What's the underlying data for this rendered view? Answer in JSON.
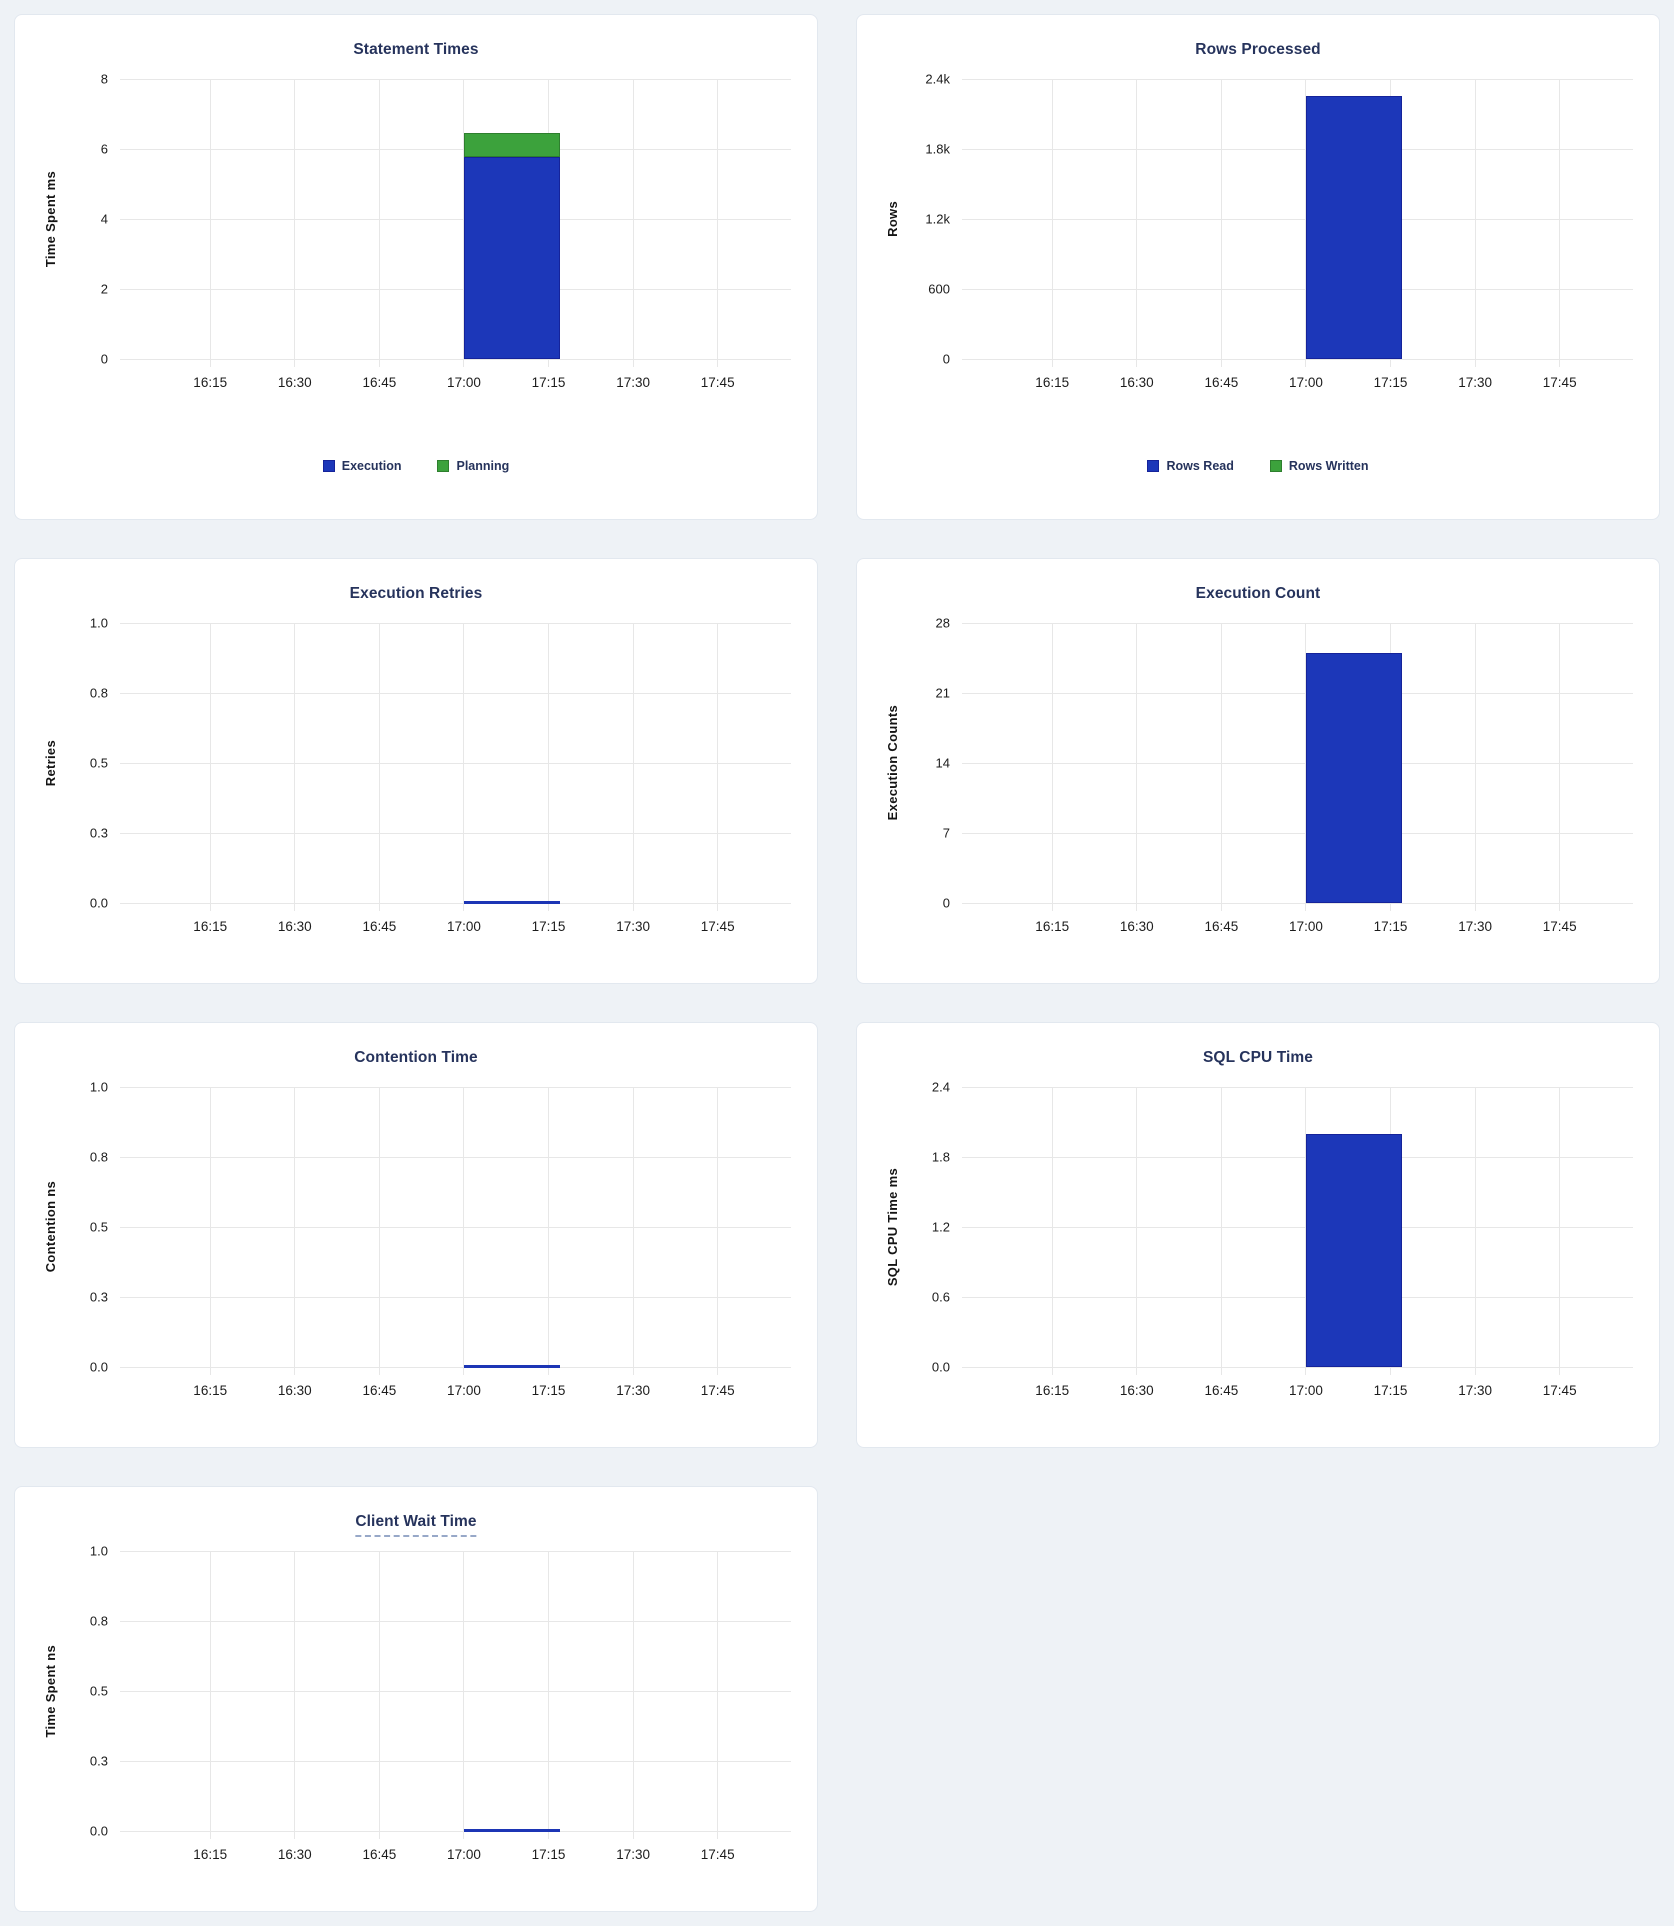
{
  "colors": {
    "blue": "#1C37B9",
    "blue_border": "#15239A",
    "green": "#3CA23C",
    "green_border": "#2E7F2E",
    "title": "#26335C",
    "page_background": "#EEF2F6",
    "gridline": "#E7E7E7"
  },
  "chart_data": [
    {
      "type": "bar",
      "title": "Statement Times",
      "ylabel": "Time Spent ms",
      "ylim": [
        0,
        8
      ],
      "yticks": [
        {
          "label": "0",
          "value": 0
        },
        {
          "label": "2",
          "value": 2
        },
        {
          "label": "4",
          "value": 4
        },
        {
          "label": "6",
          "value": 6
        },
        {
          "label": "8",
          "value": 8
        }
      ],
      "xlim": [
        "15:59",
        "17:58"
      ],
      "xticks": [
        "16:15",
        "16:30",
        "16:45",
        "17:00",
        "17:15",
        "17:30",
        "17:45"
      ],
      "bar": {
        "start": "17:00",
        "end": "17:17"
      },
      "stacked": true,
      "series": [
        {
          "name": "Execution",
          "color": "blue",
          "value": 5.76
        },
        {
          "name": "Planning",
          "color": "green",
          "value": 0.69
        }
      ],
      "legend": [
        {
          "label": "Execution",
          "color": "blue"
        },
        {
          "label": "Planning",
          "color": "green"
        }
      ],
      "title_underlined": false
    },
    {
      "type": "bar",
      "title": "Rows Processed",
      "ylabel": "Rows",
      "ylim": [
        0,
        2400
      ],
      "yticks": [
        {
          "label": "0",
          "value": 0
        },
        {
          "label": "600",
          "value": 600
        },
        {
          "label": "1.2k",
          "value": 1200
        },
        {
          "label": "1.8k",
          "value": 1800
        },
        {
          "label": "2.4k",
          "value": 2400
        }
      ],
      "xlim": [
        "15:59",
        "17:58"
      ],
      "xticks": [
        "16:15",
        "16:30",
        "16:45",
        "17:00",
        "17:15",
        "17:30",
        "17:45"
      ],
      "bar": {
        "start": "17:00",
        "end": "17:17"
      },
      "stacked": true,
      "series": [
        {
          "name": "Rows Read",
          "color": "blue",
          "value": 2255
        },
        {
          "name": "Rows Written",
          "color": "green",
          "value": 0
        }
      ],
      "legend": [
        {
          "label": "Rows Read",
          "color": "blue"
        },
        {
          "label": "Rows Written",
          "color": "green"
        }
      ],
      "title_underlined": false
    },
    {
      "type": "bar",
      "title": "Execution Retries",
      "ylabel": "Retries",
      "ylim": [
        0,
        1
      ],
      "yticks": [
        {
          "label": "0.0",
          "value": 0
        },
        {
          "label": "0.3",
          "value": 0.25
        },
        {
          "label": "0.5",
          "value": 0.5
        },
        {
          "label": "0.8",
          "value": 0.75
        },
        {
          "label": "1.0",
          "value": 1
        }
      ],
      "xlim": [
        "15:59",
        "17:58"
      ],
      "xticks": [
        "16:15",
        "16:30",
        "16:45",
        "17:00",
        "17:15",
        "17:30",
        "17:45"
      ],
      "bar": {
        "start": "17:00",
        "end": "17:17"
      },
      "stacked": false,
      "series": [
        {
          "name": "Retries",
          "color": "blue",
          "value": 0
        }
      ],
      "legend": null,
      "title_underlined": false
    },
    {
      "type": "bar",
      "title": "Execution Count",
      "ylabel": "Execution Counts",
      "ylim": [
        0,
        28
      ],
      "yticks": [
        {
          "label": "0",
          "value": 0
        },
        {
          "label": "7",
          "value": 7
        },
        {
          "label": "14",
          "value": 14
        },
        {
          "label": "21",
          "value": 21
        },
        {
          "label": "28",
          "value": 28
        }
      ],
      "xlim": [
        "15:59",
        "17:58"
      ],
      "xticks": [
        "16:15",
        "16:30",
        "16:45",
        "17:00",
        "17:15",
        "17:30",
        "17:45"
      ],
      "bar": {
        "start": "17:00",
        "end": "17:17"
      },
      "stacked": false,
      "series": [
        {
          "name": "Execution Count",
          "color": "blue",
          "value": 25
        }
      ],
      "legend": null,
      "title_underlined": false
    },
    {
      "type": "bar",
      "title": "Contention Time",
      "ylabel": "Contention ns",
      "ylim": [
        0,
        1
      ],
      "yticks": [
        {
          "label": "0.0",
          "value": 0
        },
        {
          "label": "0.3",
          "value": 0.25
        },
        {
          "label": "0.5",
          "value": 0.5
        },
        {
          "label": "0.8",
          "value": 0.75
        },
        {
          "label": "1.0",
          "value": 1
        }
      ],
      "xlim": [
        "15:59",
        "17:58"
      ],
      "xticks": [
        "16:15",
        "16:30",
        "16:45",
        "17:00",
        "17:15",
        "17:30",
        "17:45"
      ],
      "bar": {
        "start": "17:00",
        "end": "17:17"
      },
      "stacked": false,
      "series": [
        {
          "name": "Contention",
          "color": "blue",
          "value": 0
        }
      ],
      "legend": null,
      "title_underlined": false
    },
    {
      "type": "bar",
      "title": "SQL CPU Time",
      "ylabel": "SQL CPU Time ms",
      "ylim": [
        0,
        2.4
      ],
      "yticks": [
        {
          "label": "0.0",
          "value": 0
        },
        {
          "label": "0.6",
          "value": 0.6
        },
        {
          "label": "1.2",
          "value": 1.2
        },
        {
          "label": "1.8",
          "value": 1.8
        },
        {
          "label": "2.4",
          "value": 2.4
        }
      ],
      "xlim": [
        "15:59",
        "17:58"
      ],
      "xticks": [
        "16:15",
        "16:30",
        "16:45",
        "17:00",
        "17:15",
        "17:30",
        "17:45"
      ],
      "bar": {
        "start": "17:00",
        "end": "17:17"
      },
      "stacked": false,
      "series": [
        {
          "name": "SQL CPU Time",
          "color": "blue",
          "value": 2.0
        }
      ],
      "legend": null,
      "title_underlined": false
    },
    {
      "type": "bar",
      "title": "Client Wait Time",
      "ylabel": "Time Spent ns",
      "ylim": [
        0,
        1
      ],
      "yticks": [
        {
          "label": "0.0",
          "value": 0
        },
        {
          "label": "0.3",
          "value": 0.25
        },
        {
          "label": "0.5",
          "value": 0.5
        },
        {
          "label": "0.8",
          "value": 0.75
        },
        {
          "label": "1.0",
          "value": 1
        }
      ],
      "xlim": [
        "15:59",
        "17:58"
      ],
      "xticks": [
        "16:15",
        "16:30",
        "16:45",
        "17:00",
        "17:15",
        "17:30",
        "17:45"
      ],
      "bar": {
        "start": "17:00",
        "end": "17:17"
      },
      "stacked": false,
      "series": [
        {
          "name": "Client Wait Time",
          "color": "blue",
          "value": 0
        }
      ],
      "legend": null,
      "title_underlined": true
    }
  ]
}
